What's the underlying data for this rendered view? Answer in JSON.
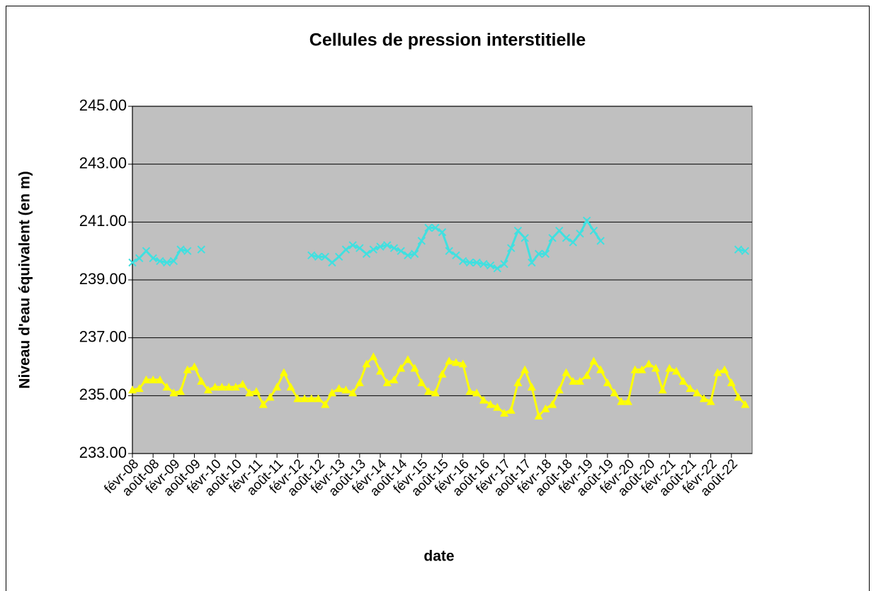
{
  "chart_data": {
    "type": "line",
    "title": "Cellules de pression interstitielle",
    "x_label": "date",
    "y_label": "Niveau d'eau équivalent (en m)",
    "categories": [
      "févr-08",
      null,
      null,
      "août-08",
      null,
      null,
      "févr-09",
      null,
      null,
      "août-09",
      null,
      null,
      "févr-10",
      null,
      null,
      "août-10",
      null,
      null,
      "févr-11",
      null,
      null,
      "août-11",
      null,
      null,
      "févr-12",
      null,
      null,
      "août-12",
      null,
      null,
      "févr-13",
      null,
      null,
      "août-13",
      null,
      null,
      "févr-14",
      null,
      null,
      "août-14",
      null,
      null,
      "févr-15",
      null,
      null,
      "août-15",
      null,
      null,
      "févr-16",
      null,
      null,
      "août-16",
      null,
      null,
      "févr-17",
      null,
      null,
      "août-17",
      null,
      null,
      "févr-18",
      null,
      null,
      "août-18",
      null,
      null,
      "févr-19",
      null,
      null,
      "août-19",
      null,
      null,
      "févr-20",
      null,
      null,
      "août-20",
      null,
      null,
      "févr-21",
      null,
      null,
      "août-21",
      null,
      null,
      "févr-22",
      null,
      null,
      "août-22",
      null,
      null
    ],
    "series": [
      {
        "color": "#40e0e0",
        "marker": "x",
        "values": [
          239.6,
          239.75,
          240.0,
          239.75,
          239.65,
          239.6,
          239.65,
          240.05,
          240.0,
          null,
          240.05,
          null,
          null,
          null,
          null,
          null,
          null,
          null,
          null,
          null,
          null,
          null,
          null,
          null,
          null,
          null,
          239.85,
          239.8,
          239.8,
          239.6,
          239.8,
          240.05,
          240.2,
          240.1,
          239.9,
          240.05,
          240.15,
          240.2,
          240.1,
          240.0,
          239.85,
          239.9,
          240.35,
          240.8,
          240.8,
          240.65,
          240.0,
          239.85,
          239.65,
          239.6,
          239.6,
          239.55,
          239.5,
          239.4,
          239.55,
          240.1,
          240.7,
          240.45,
          239.6,
          239.9,
          239.9,
          240.45,
          240.7,
          240.45,
          240.3,
          240.6,
          241.05,
          240.7,
          240.35,
          null,
          null,
          null,
          null,
          null,
          null,
          null,
          null,
          null,
          null,
          null,
          null,
          null,
          null,
          null,
          null,
          null,
          null,
          null,
          240.05,
          240.0
        ]
      },
      {
        "color": "#ffff00",
        "marker": "triangle",
        "values": [
          235.2,
          235.25,
          235.55,
          235.55,
          235.55,
          235.3,
          235.1,
          235.15,
          235.9,
          236.0,
          235.5,
          235.2,
          235.3,
          235.3,
          235.3,
          235.3,
          235.4,
          235.1,
          235.15,
          234.7,
          234.95,
          235.3,
          235.8,
          235.3,
          234.9,
          234.9,
          234.9,
          234.9,
          234.7,
          235.1,
          235.25,
          235.2,
          235.1,
          235.45,
          236.1,
          236.35,
          235.85,
          235.45,
          235.55,
          235.95,
          236.25,
          235.95,
          235.45,
          235.15,
          235.1,
          235.75,
          236.2,
          236.15,
          236.1,
          235.15,
          235.1,
          234.85,
          234.7,
          234.6,
          234.4,
          234.5,
          235.45,
          235.9,
          235.3,
          234.3,
          234.55,
          234.7,
          235.2,
          235.8,
          235.5,
          235.5,
          235.7,
          236.2,
          235.9,
          235.45,
          235.1,
          234.8,
          234.8,
          235.9,
          235.9,
          236.1,
          235.95,
          235.2,
          235.95,
          235.85,
          235.5,
          235.25,
          235.1,
          234.9,
          234.8,
          235.8,
          235.9,
          235.45,
          234.95,
          234.7
        ]
      }
    ],
    "ylim": [
      233,
      245
    ],
    "yticks": [
      {
        "value": 233,
        "label": "233.00"
      },
      {
        "value": 235,
        "label": "235.00"
      },
      {
        "value": 237,
        "label": "237.00"
      },
      {
        "value": 239,
        "label": "239.00"
      },
      {
        "value": 241,
        "label": "241.00"
      },
      {
        "value": 243,
        "label": "243.00"
      },
      {
        "value": 245,
        "label": "245.00"
      }
    ],
    "grid": true,
    "plot_background": "#c0c0c0"
  }
}
